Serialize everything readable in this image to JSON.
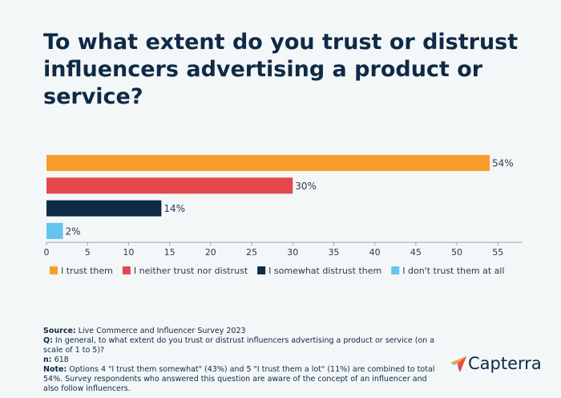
{
  "chart_data": {
    "type": "bar",
    "orientation": "horizontal",
    "title": "To what extent do you trust or distrust influencers advertising a product or service?",
    "series": [
      {
        "name": "I trust them",
        "color": "#f99d2a",
        "values": [
          54
        ],
        "value_labels": [
          "54%"
        ]
      },
      {
        "name": "I neither trust nor distrust",
        "color": "#e5474d",
        "values": [
          30
        ],
        "value_labels": [
          "30%"
        ]
      },
      {
        "name": "I somewhat distrust them",
        "color": "#0f2a45",
        "values": [
          14
        ],
        "value_labels": [
          "14%"
        ]
      },
      {
        "name": "I don't trust them at all",
        "color": "#63c4ec",
        "values": [
          2
        ],
        "value_labels": [
          "2%"
        ]
      }
    ],
    "xlim": [
      0,
      58
    ],
    "xticks": [
      0,
      5,
      10,
      15,
      20,
      25,
      30,
      35,
      40,
      45,
      50,
      55
    ],
    "legend": "bottom-left"
  },
  "footer": {
    "source_label": "Source:",
    "source": "Live Commerce and Influencer Survey 2023",
    "question_label": "Q:",
    "question": "In general, to what extent do you trust or distrust influencers advertising a product or service (on a scale of 1 to 5)?",
    "n_label": "n:",
    "n": "618",
    "note_label": "Note:",
    "note": "Options 4 \"I trust them somewhat\" (43%) and 5 \"I trust them a lot\" (11%) are combined to total 54%. Survey respondents who answered this question are aware of the concept of an influencer and also follow influencers."
  },
  "logo": {
    "text": "Capterra"
  }
}
